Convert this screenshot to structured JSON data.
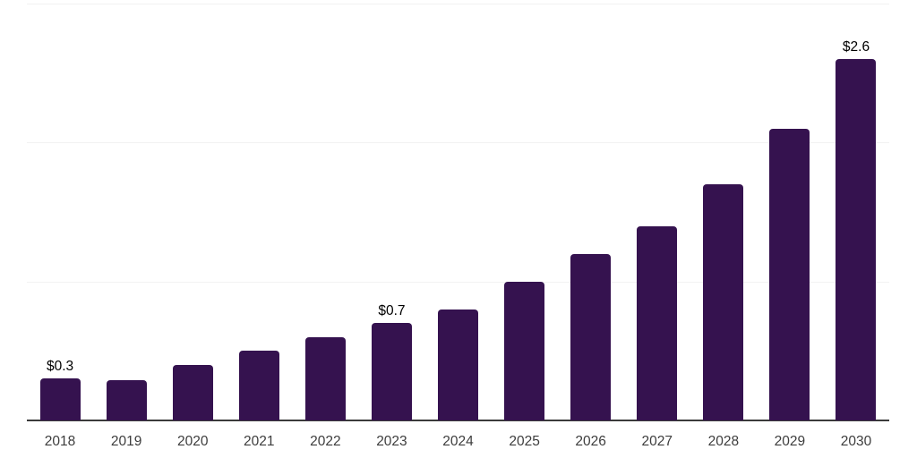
{
  "colors": {
    "background": "#ffffff",
    "bar": "#35124F",
    "gridline": "#f2f2f2",
    "axis_line": "#3b3b3b",
    "tick_label": "#3d3d3d",
    "value_label": "#000000"
  },
  "chart_data": {
    "type": "bar",
    "title": "",
    "xlabel": "",
    "ylabel": "",
    "categories": [
      "2018",
      "2019",
      "2020",
      "2021",
      "2022",
      "2023",
      "2024",
      "2025",
      "2026",
      "2027",
      "2028",
      "2029",
      "2030"
    ],
    "values": [
      0.3,
      0.29,
      0.4,
      0.5,
      0.6,
      0.7,
      0.8,
      1.0,
      1.2,
      1.4,
      1.7,
      2.1,
      2.6
    ],
    "value_labels": [
      "$0.3",
      null,
      null,
      null,
      null,
      "$0.7",
      null,
      null,
      null,
      null,
      null,
      null,
      "$2.6"
    ],
    "ylim": [
      0,
      3
    ],
    "gridline_values": [
      1,
      2,
      3
    ],
    "grid": "horizontal-only",
    "legend_position": "none"
  }
}
